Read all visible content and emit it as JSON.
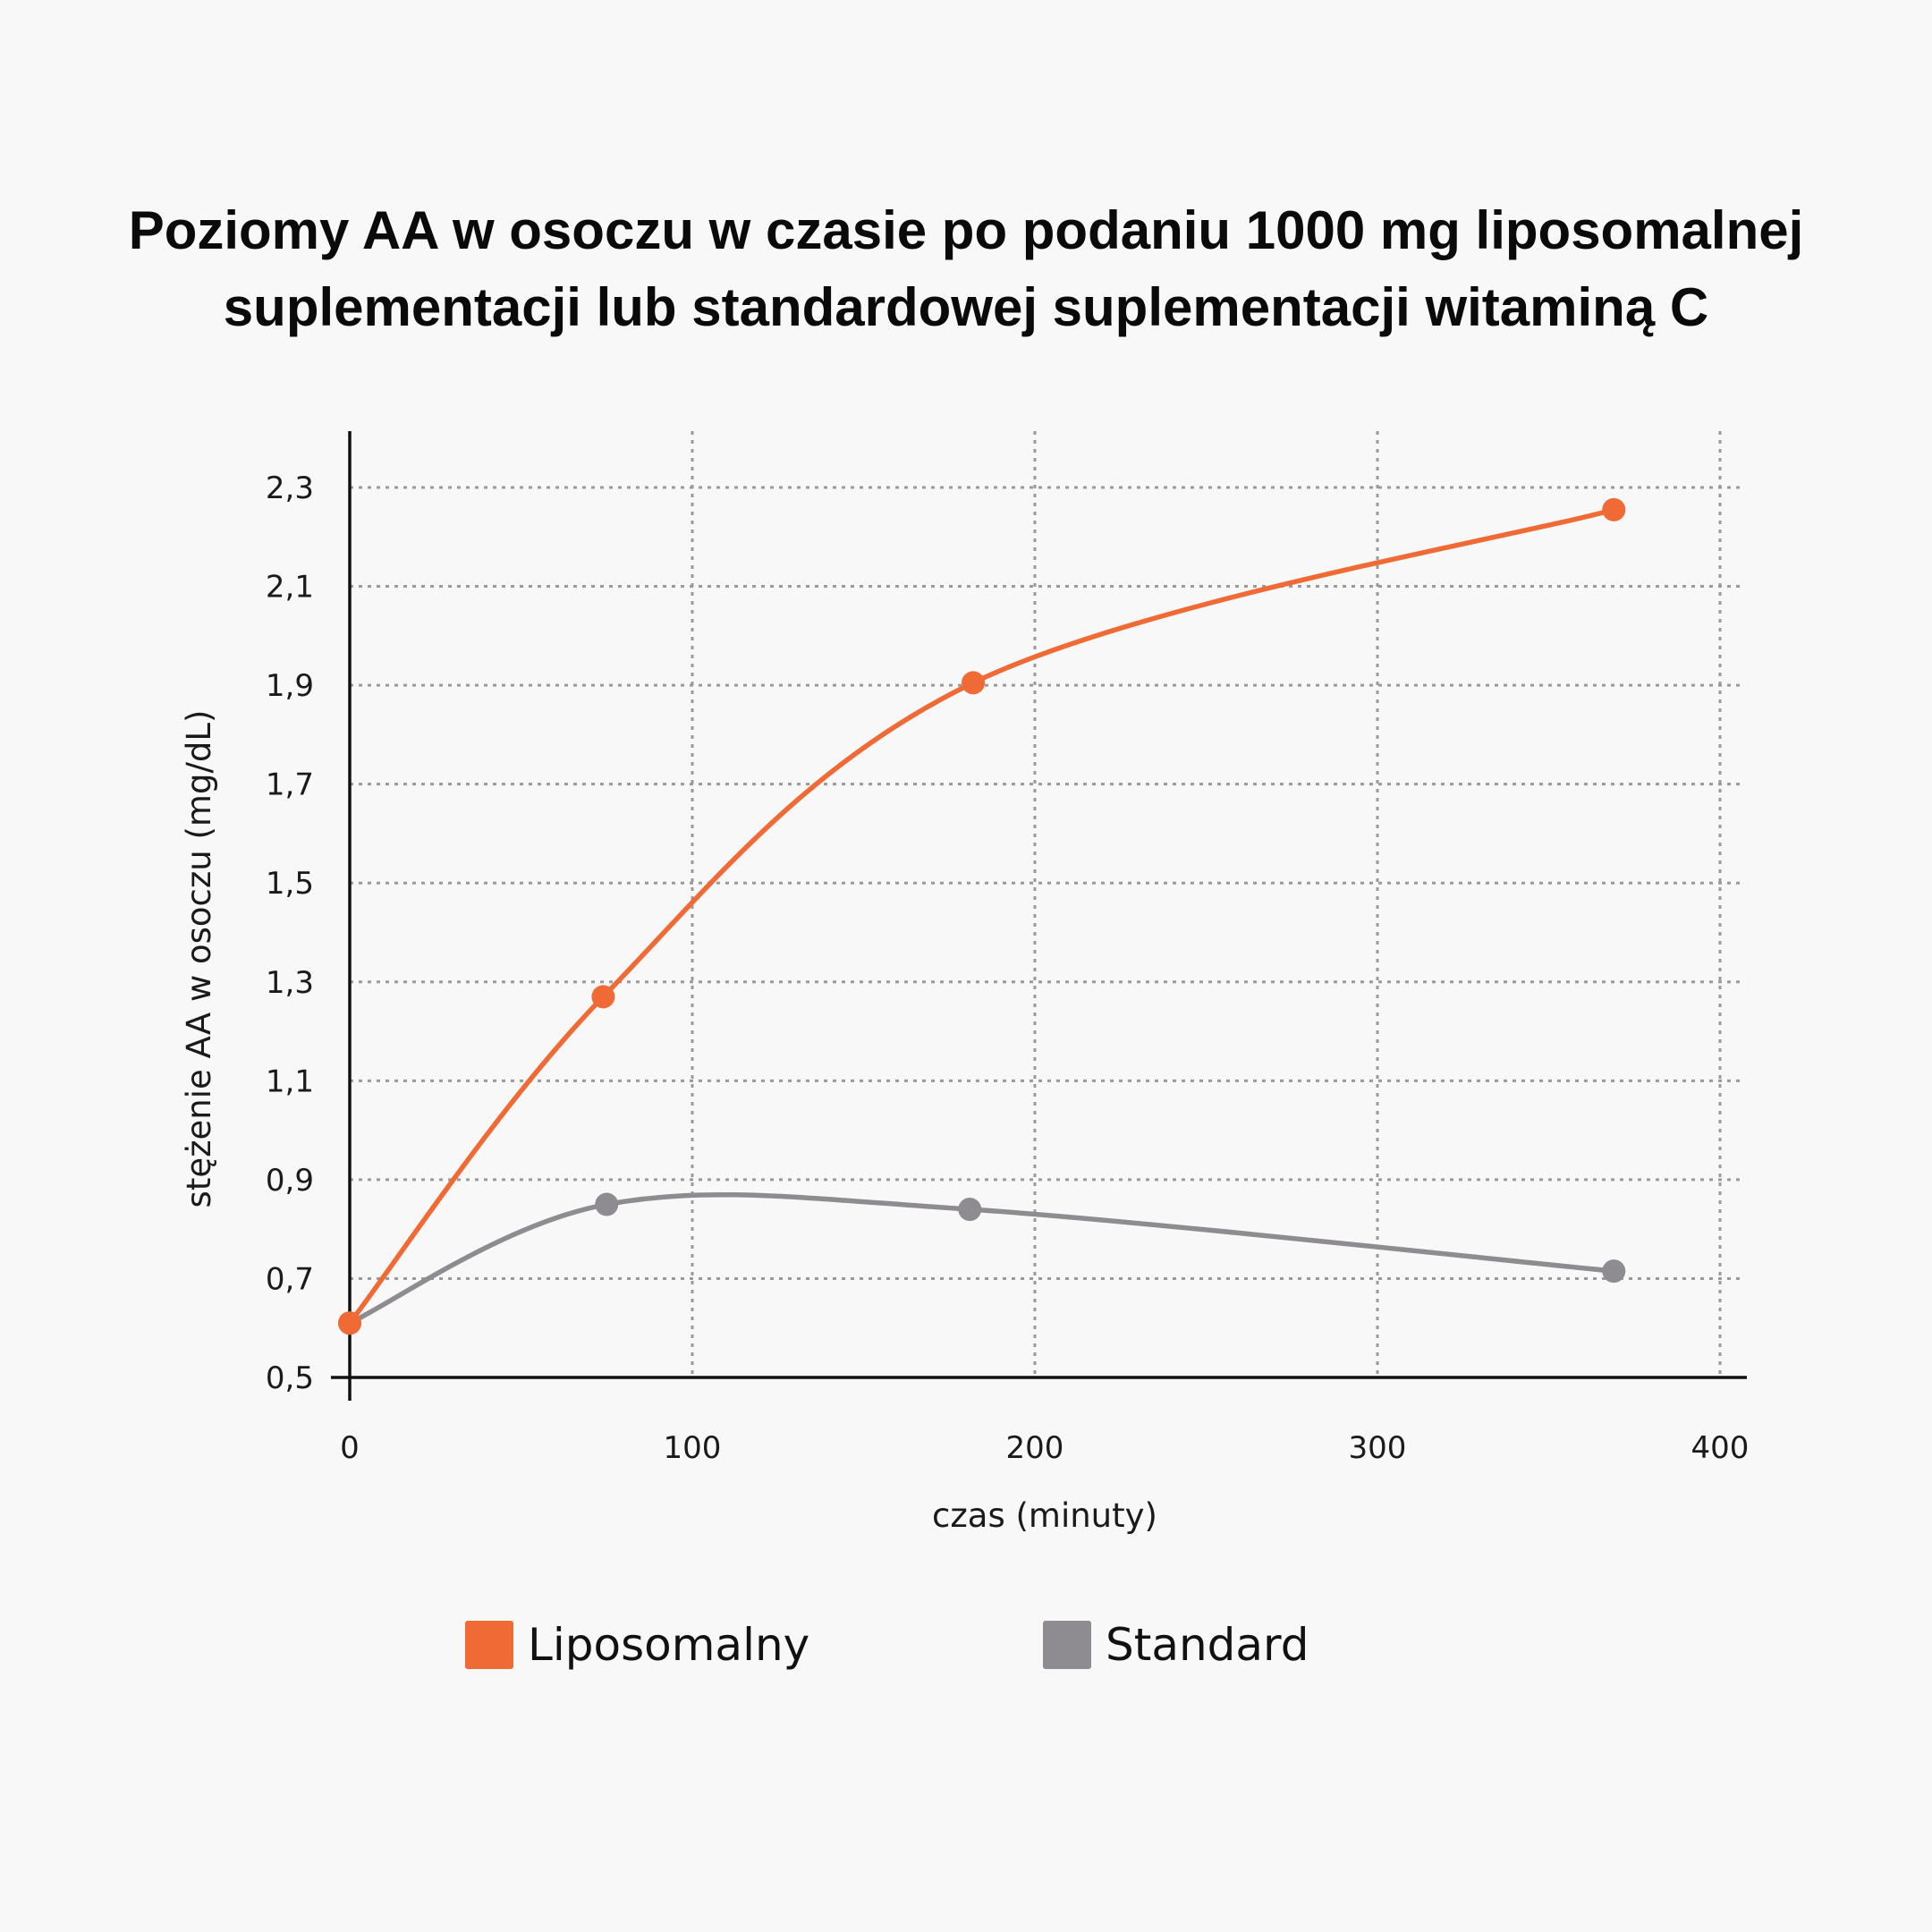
{
  "title_lines": [
    "Poziomy AA w osoczu w czasie po podaniu 1000 mg liposomalnej",
    "suplementacji lub standardowej suplementacji witaminą C"
  ],
  "colors": {
    "liposomal": "#f06a35",
    "standard": "#8e8b91",
    "axis": "#111111",
    "grid": "#9a9a9a"
  },
  "legend": [
    {
      "label": "Liposomalny",
      "color": "#f06a35"
    },
    {
      "label": "Standard",
      "color": "#8e8b91"
    }
  ],
  "chart_data": {
    "type": "line",
    "xlabel": "czas (minuty)",
    "ylabel": "stężenie AA w osoczu (mg/dL)",
    "xlim": [
      0,
      400
    ],
    "ylim": [
      0.5,
      2.3
    ],
    "x_ticks": [
      0,
      100,
      200,
      300,
      400
    ],
    "x_tick_labels": [
      "0",
      "100",
      "200",
      "300",
      "400"
    ],
    "y_ticks": [
      0.5,
      0.7,
      0.9,
      1.1,
      1.3,
      1.5,
      1.7,
      1.9,
      2.1,
      2.3
    ],
    "y_tick_labels": [
      "0,5",
      "0,7",
      "0,9",
      "1,1",
      "1,3",
      "1,5",
      "1,7",
      "1,9",
      "2,1",
      "2,3"
    ],
    "grid": true,
    "legend_position": "bottom",
    "series": [
      {
        "name": "Liposomalny",
        "color": "#f06a35",
        "x": [
          0,
          74,
          182,
          369
        ],
        "y": [
          0.61,
          1.27,
          1.905,
          2.255
        ]
      },
      {
        "name": "Standard",
        "color": "#8e8b91",
        "x": [
          0,
          75,
          181,
          369
        ],
        "y": [
          0.61,
          0.85,
          0.84,
          0.715
        ]
      }
    ]
  }
}
